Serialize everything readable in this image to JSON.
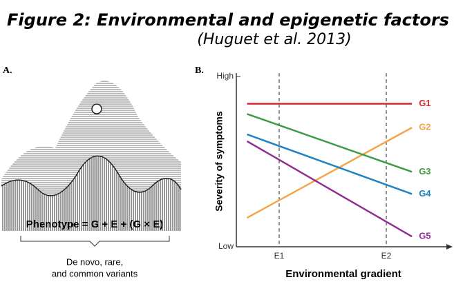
{
  "title": "Figure 2: Environmental and epigenetic factors",
  "subtitle": "(Huguet et al. 2013)",
  "panel_a": {
    "label": "A.",
    "equation": "Phenotype = G + E + (G × E)",
    "note_lines": [
      "De novo, rare,",
      "and common variants"
    ]
  },
  "chart_data": {
    "type": "line",
    "panel_label": "B.",
    "y_label": "Severity of symptoms",
    "x_label": "Environmental gradient",
    "x": [
      0.5,
      8.2
    ],
    "xlim": [
      0,
      10
    ],
    "xticks": [
      {
        "value": 2,
        "label": "E1"
      },
      {
        "value": 7,
        "label": "E2"
      }
    ],
    "ylim": [
      0,
      10
    ],
    "yticks": [
      {
        "value": 0,
        "label": "Low"
      },
      {
        "value": 10,
        "label": "High"
      }
    ],
    "series": [
      {
        "name": "G1",
        "color": "#d7262e",
        "values": [
          8.4,
          8.4
        ]
      },
      {
        "name": "G2",
        "color": "#f5a447",
        "values": [
          1.7,
          7.0
        ]
      },
      {
        "name": "G3",
        "color": "#3c9b43",
        "values": [
          7.8,
          4.4
        ]
      },
      {
        "name": "G4",
        "color": "#1f82c5",
        "values": [
          6.6,
          3.1
        ]
      },
      {
        "name": "G5",
        "color": "#8f2f91",
        "values": [
          6.2,
          0.6
        ]
      }
    ]
  }
}
